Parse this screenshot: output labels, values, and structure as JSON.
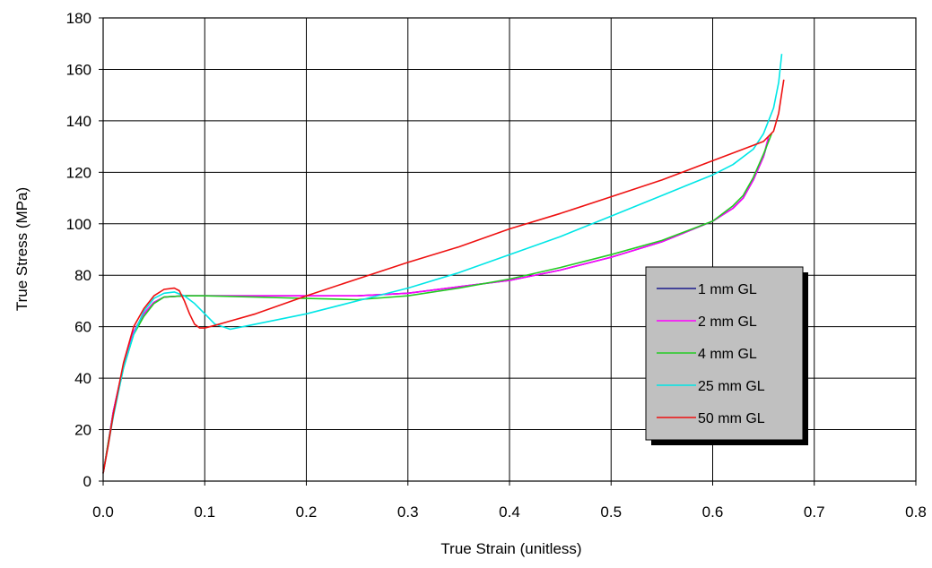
{
  "chart_data": {
    "type": "line",
    "title": "",
    "xlabel": "True Strain (unitless)",
    "ylabel": "True Stress (MPa)",
    "xlim": [
      0,
      0.8
    ],
    "ylim": [
      0,
      180
    ],
    "x_ticks": [
      "0.0",
      "0.1",
      "0.2",
      "0.3",
      "0.4",
      "0.5",
      "0.6",
      "0.7",
      "0.8"
    ],
    "y_ticks": [
      "0",
      "20",
      "40",
      "60",
      "80",
      "100",
      "120",
      "140",
      "160",
      "180"
    ],
    "grid": true,
    "legend_position": "right",
    "series": [
      {
        "name": "1 mm GL",
        "color": "#1a1a8c",
        "points": [
          [
            0,
            3
          ],
          [
            0.005,
            15
          ],
          [
            0.01,
            27
          ],
          [
            0.02,
            45
          ],
          [
            0.03,
            58
          ],
          [
            0.04,
            65
          ],
          [
            0.05,
            69.5
          ],
          [
            0.06,
            71.5
          ],
          [
            0.08,
            72
          ],
          [
            0.1,
            72
          ],
          [
            0.15,
            72
          ],
          [
            0.2,
            72
          ],
          [
            0.25,
            72
          ],
          [
            0.3,
            73
          ],
          [
            0.35,
            75.5
          ],
          [
            0.4,
            78
          ],
          [
            0.45,
            82
          ],
          [
            0.5,
            87
          ],
          [
            0.55,
            93
          ],
          [
            0.6,
            101
          ],
          [
            0.62,
            106
          ],
          [
            0.63,
            110
          ],
          [
            0.64,
            117
          ],
          [
            0.65,
            126
          ],
          [
            0.655,
            133
          ]
        ]
      },
      {
        "name": "2 mm GL",
        "color": "#ff00ff",
        "points": [
          [
            0,
            3
          ],
          [
            0.005,
            15
          ],
          [
            0.01,
            27
          ],
          [
            0.02,
            45
          ],
          [
            0.03,
            58
          ],
          [
            0.04,
            65
          ],
          [
            0.05,
            69.5
          ],
          [
            0.06,
            71.5
          ],
          [
            0.08,
            72
          ],
          [
            0.1,
            72
          ],
          [
            0.15,
            72
          ],
          [
            0.2,
            72
          ],
          [
            0.25,
            72
          ],
          [
            0.3,
            73
          ],
          [
            0.35,
            75.5
          ],
          [
            0.4,
            78
          ],
          [
            0.45,
            82
          ],
          [
            0.5,
            87
          ],
          [
            0.55,
            93
          ],
          [
            0.6,
            101
          ],
          [
            0.62,
            106
          ],
          [
            0.63,
            110
          ],
          [
            0.64,
            117
          ],
          [
            0.65,
            126
          ],
          [
            0.655,
            134
          ]
        ]
      },
      {
        "name": "4 mm GL",
        "color": "#22cc22",
        "points": [
          [
            0,
            3
          ],
          [
            0.005,
            15
          ],
          [
            0.01,
            26
          ],
          [
            0.02,
            44
          ],
          [
            0.03,
            57
          ],
          [
            0.04,
            64
          ],
          [
            0.05,
            69
          ],
          [
            0.06,
            71.5
          ],
          [
            0.08,
            72
          ],
          [
            0.1,
            72
          ],
          [
            0.15,
            71.5
          ],
          [
            0.2,
            71
          ],
          [
            0.25,
            70.5
          ],
          [
            0.3,
            72
          ],
          [
            0.35,
            75
          ],
          [
            0.4,
            78.5
          ],
          [
            0.45,
            83
          ],
          [
            0.5,
            88
          ],
          [
            0.55,
            93.5
          ],
          [
            0.6,
            101
          ],
          [
            0.62,
            107
          ],
          [
            0.63,
            111
          ],
          [
            0.64,
            118
          ],
          [
            0.65,
            127
          ],
          [
            0.658,
            135
          ]
        ]
      },
      {
        "name": "25 mm GL",
        "color": "#00e6e6",
        "points": [
          [
            0,
            3
          ],
          [
            0.005,
            14
          ],
          [
            0.01,
            25
          ],
          [
            0.02,
            44
          ],
          [
            0.03,
            57
          ],
          [
            0.04,
            66
          ],
          [
            0.05,
            71
          ],
          [
            0.06,
            73
          ],
          [
            0.07,
            73.5
          ],
          [
            0.08,
            72
          ],
          [
            0.09,
            69
          ],
          [
            0.1,
            65
          ],
          [
            0.11,
            61
          ],
          [
            0.125,
            59
          ],
          [
            0.15,
            61
          ],
          [
            0.2,
            65
          ],
          [
            0.25,
            70
          ],
          [
            0.3,
            75
          ],
          [
            0.35,
            81
          ],
          [
            0.4,
            88
          ],
          [
            0.45,
            95
          ],
          [
            0.5,
            103
          ],
          [
            0.55,
            111
          ],
          [
            0.6,
            119
          ],
          [
            0.62,
            123
          ],
          [
            0.64,
            129
          ],
          [
            0.65,
            135
          ],
          [
            0.66,
            145
          ],
          [
            0.665,
            155
          ],
          [
            0.668,
            166
          ]
        ]
      },
      {
        "name": "50 mm GL",
        "color": "#ee1111",
        "points": [
          [
            0,
            3
          ],
          [
            0.005,
            14
          ],
          [
            0.01,
            26
          ],
          [
            0.02,
            46
          ],
          [
            0.03,
            60
          ],
          [
            0.04,
            67
          ],
          [
            0.05,
            72
          ],
          [
            0.06,
            74.5
          ],
          [
            0.07,
            75
          ],
          [
            0.075,
            74
          ],
          [
            0.08,
            70
          ],
          [
            0.085,
            65
          ],
          [
            0.09,
            61
          ],
          [
            0.095,
            59.5
          ],
          [
            0.1,
            59.5
          ],
          [
            0.11,
            60.5
          ],
          [
            0.15,
            65
          ],
          [
            0.2,
            72
          ],
          [
            0.25,
            78.5
          ],
          [
            0.3,
            85
          ],
          [
            0.35,
            91
          ],
          [
            0.4,
            98
          ],
          [
            0.45,
            104
          ],
          [
            0.5,
            110.5
          ],
          [
            0.55,
            117
          ],
          [
            0.6,
            124.5
          ],
          [
            0.63,
            129
          ],
          [
            0.65,
            132
          ],
          [
            0.66,
            136
          ],
          [
            0.665,
            143
          ],
          [
            0.67,
            156
          ]
        ]
      }
    ]
  }
}
